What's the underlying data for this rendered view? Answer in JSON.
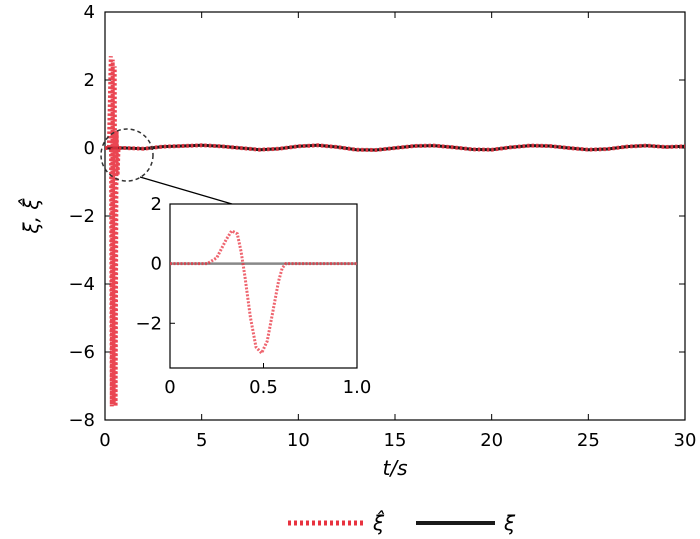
{
  "chart_data": {
    "type": "line",
    "xlabel": "t/s",
    "ylabel": "ξ, ξ̂",
    "xlim": [
      0,
      30
    ],
    "ylim": [
      -8,
      4
    ],
    "xticks": [
      "0",
      "5",
      "10",
      "15",
      "20",
      "25",
      "30"
    ],
    "yticks": [
      "-8",
      "-6",
      "-4",
      "-2",
      "0",
      "2",
      "4"
    ],
    "series": [
      {
        "name": "ξ̂",
        "color": "#e8323f",
        "style": "dotted",
        "x": [
          0,
          0.2,
          0.3,
          0.35,
          0.4,
          0.45,
          0.5,
          0.55,
          0.6,
          0.65,
          0.7,
          1,
          2,
          3,
          4,
          5,
          6,
          7,
          8,
          9,
          10,
          11,
          12,
          13,
          14,
          15,
          16,
          17,
          18,
          19,
          20,
          21,
          22,
          23,
          24,
          25,
          26,
          27,
          28,
          29,
          30
        ],
        "y": [
          0,
          0,
          2.7,
          -7.6,
          2.6,
          -7.5,
          2.4,
          -7.6,
          0.5,
          -0.8,
          0,
          0,
          -0.02,
          0.04,
          0.06,
          0.08,
          0.05,
          0,
          -0.05,
          -0.02,
          0.05,
          0.08,
          0.03,
          -0.05,
          -0.06,
          0,
          0.06,
          0.07,
          0.02,
          -0.04,
          -0.05,
          0.02,
          0.07,
          0.06,
          0,
          -0.05,
          -0.03,
          0.04,
          0.07,
          0.03,
          0.05
        ]
      },
      {
        "name": "ξ",
        "color": "#1a1a1a",
        "style": "solid",
        "x": [
          0,
          1,
          2,
          3,
          4,
          5,
          6,
          7,
          8,
          9,
          10,
          11,
          12,
          13,
          14,
          15,
          16,
          17,
          18,
          19,
          20,
          21,
          22,
          23,
          24,
          25,
          26,
          27,
          28,
          29,
          30
        ],
        "y": [
          0,
          0,
          -0.02,
          0.04,
          0.06,
          0.08,
          0.05,
          0,
          -0.05,
          -0.02,
          0.05,
          0.08,
          0.03,
          -0.05,
          -0.06,
          0,
          0.06,
          0.07,
          0.02,
          -0.04,
          -0.05,
          0.02,
          0.07,
          0.06,
          0,
          -0.05,
          -0.03,
          0.04,
          0.07,
          0.03,
          0.05
        ]
      }
    ],
    "inset": {
      "xlim": [
        0,
        1
      ],
      "ylim": [
        -3.5,
        2
      ],
      "xticks": [
        "0",
        "0.5",
        "1.0"
      ],
      "yticks": [
        "-2",
        "0",
        "2"
      ],
      "series": [
        {
          "name": "ξ̂",
          "color": "#e8323f",
          "x": [
            0,
            0.2,
            0.25,
            0.3,
            0.33,
            0.36,
            0.38,
            0.4,
            0.43,
            0.46,
            0.49,
            0.52,
            0.55,
            0.58,
            0.6,
            0.62,
            0.65,
            1.0
          ],
          "y": [
            0,
            0,
            0.2,
            0.8,
            1.1,
            1.0,
            0.4,
            -0.4,
            -1.8,
            -2.8,
            -3.0,
            -2.6,
            -1.6,
            -0.6,
            -0.15,
            0,
            0,
            0
          ]
        },
        {
          "name": "ξ",
          "color": "#888888",
          "x": [
            0,
            1.0
          ],
          "y": [
            0,
            0
          ]
        }
      ]
    },
    "legend": {
      "placement": "bottom",
      "entries": [
        "ξ̂",
        "ξ"
      ]
    }
  }
}
